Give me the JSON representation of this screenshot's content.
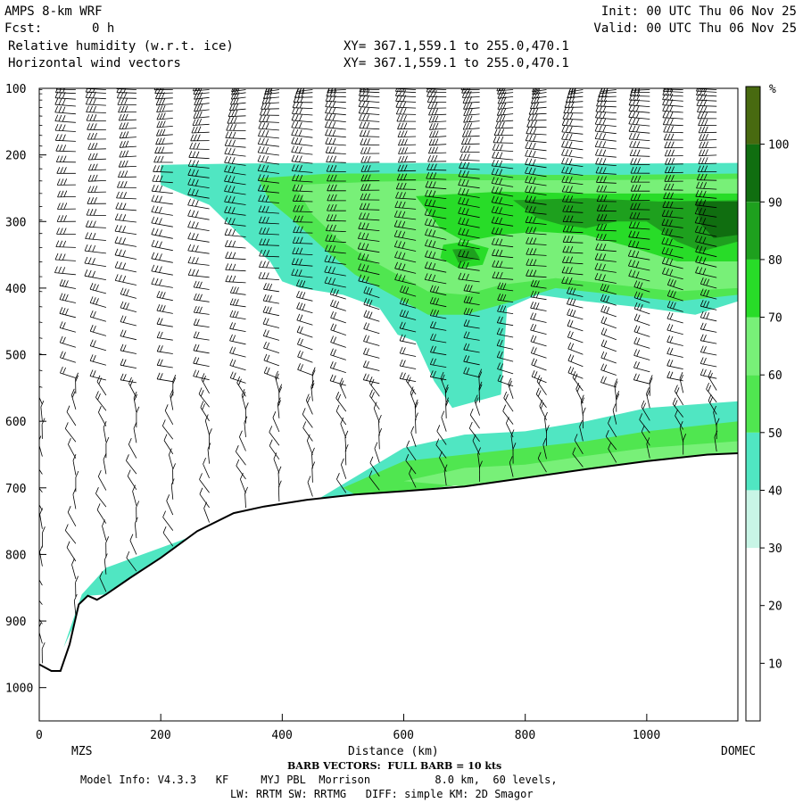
{
  "header": {
    "model": "AMPS 8-km WRF",
    "fcst_label": "Fcst:",
    "fcst_value": "0 h",
    "init": "Init: 00 UTC Thu 06 Nov 25",
    "valid": "Valid: 00 UTC Thu 06 Nov 25",
    "field1": "Relative humidity (w.r.t. ice)",
    "field2": "Horizontal wind vectors",
    "xy1": "XY= 367.1,559.1 to 255.0,470.1",
    "xy2": "XY= 367.1,559.1 to 255.0,470.1"
  },
  "footer": {
    "barb": "BARB VECTORS:  FULL BARB = 10 kts",
    "model_info": "Model Info: V4.3.3   KF     MYJ PBL  Morrison          8.0 km,  60 levels,",
    "physics": "LW: RRTM SW: RRTMG   DIFF: simple KM: 2D Smagor"
  },
  "chart_data": {
    "type": "heatmap",
    "title": "Relative humidity (w.r.t. ice)",
    "xlabel": "Distance (km)",
    "ylabel": "",
    "xlim": [
      0,
      1150
    ],
    "ylim": [
      1050,
      100
    ],
    "x_ticks": [
      0,
      200,
      400,
      600,
      800,
      1000
    ],
    "y_ticks": [
      100,
      200,
      300,
      400,
      500,
      600,
      700,
      800,
      900,
      1000
    ],
    "endpoints": {
      "left": "MZS",
      "right": "DOMEC"
    },
    "colorbar": {
      "unit": "%",
      "levels": [
        10,
        20,
        30,
        40,
        50,
        60,
        70,
        80,
        90,
        100
      ],
      "colors": [
        "#ffffff",
        "#ffffff",
        "#ffffff",
        "#c8f5e6",
        "#50e6c2",
        "#50e650",
        "#78f078",
        "#28dc28",
        "#1ea01e",
        "#106e10",
        "#486a10"
      ]
    },
    "terrain_pressure": [
      [
        0,
        965
      ],
      [
        20,
        975
      ],
      [
        35,
        975
      ],
      [
        50,
        935
      ],
      [
        65,
        875
      ],
      [
        80,
        862
      ],
      [
        95,
        868
      ],
      [
        110,
        860
      ],
      [
        150,
        835
      ],
      [
        200,
        805
      ],
      [
        260,
        765
      ],
      [
        320,
        738
      ],
      [
        370,
        728
      ],
      [
        440,
        718
      ],
      [
        520,
        710
      ],
      [
        600,
        705
      ],
      [
        700,
        698
      ],
      [
        800,
        685
      ],
      [
        900,
        672
      ],
      [
        1000,
        660
      ],
      [
        1100,
        650
      ],
      [
        1150,
        648
      ]
    ],
    "rh_regions": [
      {
        "level": 40,
        "points": [
          [
            200,
            215
          ],
          [
            330,
            213
          ],
          [
            480,
            212
          ],
          [
            640,
            212
          ],
          [
            800,
            213
          ],
          [
            1000,
            213
          ],
          [
            1150,
            212
          ],
          [
            1150,
            420
          ],
          [
            1080,
            440
          ],
          [
            1000,
            430
          ],
          [
            900,
            420
          ],
          [
            820,
            410
          ],
          [
            770,
            430
          ],
          [
            760,
            560
          ],
          [
            680,
            580
          ],
          [
            650,
            540
          ],
          [
            620,
            480
          ],
          [
            590,
            470
          ],
          [
            560,
            430
          ],
          [
            500,
            410
          ],
          [
            430,
            400
          ],
          [
            400,
            390
          ],
          [
            380,
            360
          ],
          [
            330,
            320
          ],
          [
            280,
            275
          ],
          [
            200,
            245
          ]
        ]
      },
      {
        "level": 50,
        "points": [
          [
            360,
            235
          ],
          [
            480,
            228
          ],
          [
            640,
            228
          ],
          [
            800,
            230
          ],
          [
            950,
            230
          ],
          [
            1150,
            228
          ],
          [
            1150,
            410
          ],
          [
            1050,
            420
          ],
          [
            950,
            410
          ],
          [
            850,
            400
          ],
          [
            780,
            420
          ],
          [
            700,
            440
          ],
          [
            640,
            440
          ],
          [
            600,
            420
          ],
          [
            560,
            400
          ],
          [
            520,
            380
          ],
          [
            480,
            350
          ],
          [
            420,
            300
          ],
          [
            380,
            270
          ]
        ]
      },
      {
        "level": 60,
        "points": [
          [
            420,
            245
          ],
          [
            560,
            240
          ],
          [
            720,
            238
          ],
          [
            900,
            238
          ],
          [
            1150,
            236
          ],
          [
            1150,
            400
          ],
          [
            1050,
            405
          ],
          [
            950,
            395
          ],
          [
            850,
            385
          ],
          [
            760,
            395
          ],
          [
            700,
            410
          ],
          [
            640,
            405
          ],
          [
            590,
            380
          ],
          [
            540,
            355
          ],
          [
            490,
            325
          ],
          [
            450,
            290
          ]
        ]
      },
      {
        "level": 70,
        "points": [
          [
            620,
            262
          ],
          [
            760,
            255
          ],
          [
            900,
            258
          ],
          [
            1150,
            258
          ],
          [
            1150,
            360
          ],
          [
            1050,
            360
          ],
          [
            980,
            340
          ],
          [
            900,
            320
          ],
          [
            820,
            315
          ],
          [
            760,
            320
          ],
          [
            700,
            330
          ],
          [
            660,
            310
          ]
        ]
      },
      {
        "level": 80,
        "points": [
          [
            780,
            268
          ],
          [
            900,
            265
          ],
          [
            1020,
            270
          ],
          [
            1150,
            268
          ],
          [
            1150,
            330
          ],
          [
            1090,
            345
          ],
          [
            1050,
            330
          ],
          [
            1000,
            300
          ],
          [
            950,
            300
          ],
          [
            900,
            310
          ],
          [
            860,
            305
          ],
          [
            820,
            295
          ]
        ]
      },
      {
        "level": 90,
        "points": [
          [
            1080,
            270
          ],
          [
            1150,
            270
          ],
          [
            1150,
            320
          ],
          [
            1110,
            325
          ],
          [
            1090,
            305
          ]
        ]
      },
      {
        "level": 70,
        "points": [
          [
            665,
            335
          ],
          [
            700,
            330
          ],
          [
            740,
            340
          ],
          [
            730,
            365
          ],
          [
            690,
            370
          ],
          [
            660,
            355
          ]
        ]
      },
      {
        "level": 80,
        "points": [
          [
            680,
            342
          ],
          [
            715,
            340
          ],
          [
            725,
            355
          ],
          [
            690,
            362
          ]
        ]
      },
      {
        "level": 40,
        "points": [
          [
            380,
            760
          ],
          [
            600,
            640
          ],
          [
            700,
            620
          ],
          [
            800,
            615
          ],
          [
            900,
            600
          ],
          [
            1000,
            580
          ],
          [
            1150,
            570
          ],
          [
            1150,
            648
          ],
          [
            1000,
            660
          ],
          [
            800,
            685
          ],
          [
            600,
            705
          ],
          [
            440,
            718
          ],
          [
            370,
            728
          ]
        ]
      },
      {
        "level": 50,
        "points": [
          [
            500,
            700
          ],
          [
            600,
            660
          ],
          [
            700,
            650
          ],
          [
            800,
            640
          ],
          [
            900,
            630
          ],
          [
            1000,
            615
          ],
          [
            1150,
            600
          ],
          [
            1150,
            648
          ],
          [
            1000,
            660
          ],
          [
            800,
            685
          ],
          [
            600,
            705
          ],
          [
            520,
            710
          ]
        ]
      },
      {
        "level": 60,
        "points": [
          [
            600,
            690
          ],
          [
            700,
            670
          ],
          [
            800,
            665
          ],
          [
            900,
            652
          ],
          [
            1000,
            640
          ],
          [
            1150,
            630
          ],
          [
            1150,
            648
          ],
          [
            1000,
            660
          ],
          [
            900,
            672
          ],
          [
            800,
            685
          ],
          [
            700,
            698
          ]
        ]
      },
      {
        "level": 40,
        "points": [
          [
            40,
            940
          ],
          [
            70,
            860
          ],
          [
            110,
            820
          ],
          [
            170,
            800
          ],
          [
            230,
            780
          ],
          [
            300,
            755
          ],
          [
            340,
            745
          ],
          [
            320,
            738
          ],
          [
            260,
            765
          ],
          [
            200,
            805
          ],
          [
            150,
            835
          ],
          [
            110,
            860
          ],
          [
            80,
            862
          ],
          [
            60,
            900
          ]
        ]
      }
    ],
    "barb_columns": [
      {
        "x": 5,
        "directions": "mixed"
      },
      {
        "x": 60,
        "directions": "mixed"
      },
      {
        "x": 110,
        "directions": "mixed"
      },
      {
        "x": 160,
        "directions": "mixed"
      },
      {
        "x": 220,
        "directions": "mixed"
      },
      {
        "x": 280,
        "directions": "mixed"
      },
      {
        "x": 340,
        "directions": "mixed"
      },
      {
        "x": 395,
        "directions": "mixed"
      },
      {
        "x": 450,
        "directions": "mixed"
      },
      {
        "x": 505,
        "directions": "mixed"
      },
      {
        "x": 560,
        "directions": "mixed"
      },
      {
        "x": 620,
        "directions": "mixed"
      },
      {
        "x": 670,
        "directions": "mixed"
      },
      {
        "x": 725,
        "directions": "mixed"
      },
      {
        "x": 780,
        "directions": "mixed"
      },
      {
        "x": 835,
        "directions": "mixed"
      },
      {
        "x": 895,
        "directions": "mixed"
      },
      {
        "x": 950,
        "directions": "mixed"
      },
      {
        "x": 1005,
        "directions": "mixed"
      },
      {
        "x": 1060,
        "directions": "mixed"
      },
      {
        "x": 1115,
        "directions": "mixed"
      }
    ]
  }
}
